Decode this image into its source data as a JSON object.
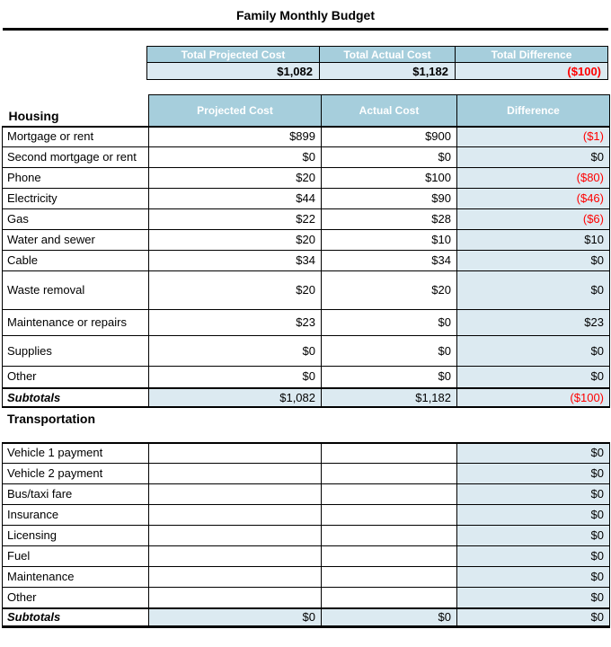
{
  "title": "Family Monthly Budget",
  "summary": {
    "headers": [
      "Total Projected Cost",
      "Total Actual Cost",
      "Total Difference"
    ],
    "values": [
      "$1,082",
      "$1,182",
      "($100)"
    ]
  },
  "column_headers": {
    "projected": "Projected Cost",
    "actual": "Actual Cost",
    "difference": "Difference"
  },
  "housing": {
    "section_label": "Housing",
    "rows": [
      {
        "label": "Mortgage or rent",
        "projected": "$899",
        "actual": "$900",
        "difference": "($1)"
      },
      {
        "label": "Second mortgage or rent",
        "projected": "$0",
        "actual": "$0",
        "difference": "$0"
      },
      {
        "label": "Phone",
        "projected": "$20",
        "actual": "$100",
        "difference": "($80)"
      },
      {
        "label": "Electricity",
        "projected": "$44",
        "actual": "$90",
        "difference": "($46)"
      },
      {
        "label": "Gas",
        "projected": "$22",
        "actual": "$28",
        "difference": "($6)"
      },
      {
        "label": "Water and sewer",
        "projected": "$20",
        "actual": "$10",
        "difference": "$10"
      },
      {
        "label": "Cable",
        "projected": "$34",
        "actual": "$34",
        "difference": "$0"
      },
      {
        "label": "Waste removal",
        "projected": "$20",
        "actual": "$20",
        "difference": "$0"
      },
      {
        "label": "Maintenance or repairs",
        "projected": "$23",
        "actual": "$0",
        "difference": "$23"
      },
      {
        "label": "Supplies",
        "projected": "$0",
        "actual": "$0",
        "difference": "$0"
      },
      {
        "label": "Other",
        "projected": "$0",
        "actual": "$0",
        "difference": "$0"
      }
    ],
    "subtotals": {
      "label": "Subtotals",
      "projected": "$1,082",
      "actual": "$1,182",
      "difference": "($100)"
    }
  },
  "transportation": {
    "section_label": "Transportation",
    "rows": [
      {
        "label": "Vehicle 1 payment",
        "projected": "",
        "actual": "",
        "difference": "$0"
      },
      {
        "label": "Vehicle 2 payment",
        "projected": "",
        "actual": "",
        "difference": "$0"
      },
      {
        "label": "Bus/taxi fare",
        "projected": "",
        "actual": "",
        "difference": "$0"
      },
      {
        "label": "Insurance",
        "projected": "",
        "actual": "",
        "difference": "$0"
      },
      {
        "label": "Licensing",
        "projected": "",
        "actual": "",
        "difference": "$0"
      },
      {
        "label": "Fuel",
        "projected": "",
        "actual": "",
        "difference": "$0"
      },
      {
        "label": "Maintenance",
        "projected": "",
        "actual": "",
        "difference": "$0"
      },
      {
        "label": "Other",
        "projected": "",
        "actual": "",
        "difference": "$0"
      }
    ],
    "subtotals": {
      "label": "Subtotals",
      "projected": "$0",
      "actual": "$0",
      "difference": "$0"
    }
  },
  "colors": {
    "header_blue": "#A6CEDC",
    "row_blue": "#DCEAF1",
    "negative_red": "#FF0000"
  }
}
